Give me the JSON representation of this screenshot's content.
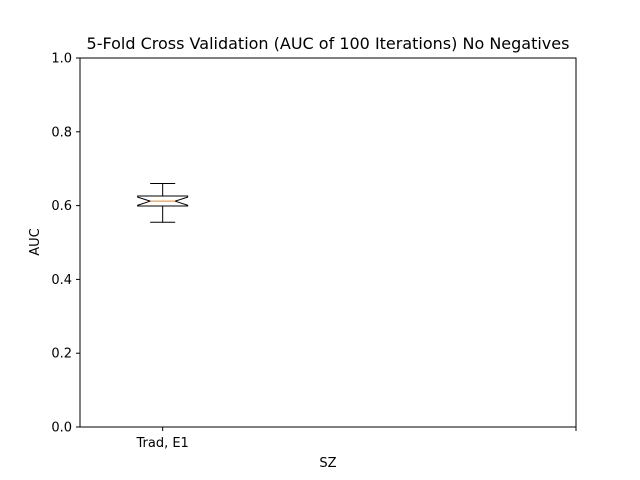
{
  "chart_data": {
    "type": "box",
    "title": "5-Fold Cross Validation (AUC of 100 Iterations) No Negatives",
    "xlabel": "SZ",
    "ylabel": "AUC",
    "ylim": [
      0,
      1
    ],
    "yticks": [
      "0.0",
      "0.2",
      "0.4",
      "0.6",
      "0.8",
      "1.0"
    ],
    "xlim": [
      0.5,
      3.5
    ],
    "notched": true,
    "grid": false,
    "series": [
      {
        "category": "Trad, E1",
        "x": 1,
        "whisker_low": 0.555,
        "q1": 0.599,
        "median": 0.612,
        "q3": 0.626,
        "whisker_high": 0.66,
        "notch_low": 0.601,
        "notch_high": 0.623
      }
    ],
    "extra_xticks": [
      3.5
    ],
    "colors": {
      "box": "#000000",
      "median": "#ff7f0e",
      "axes": "#000000"
    }
  }
}
